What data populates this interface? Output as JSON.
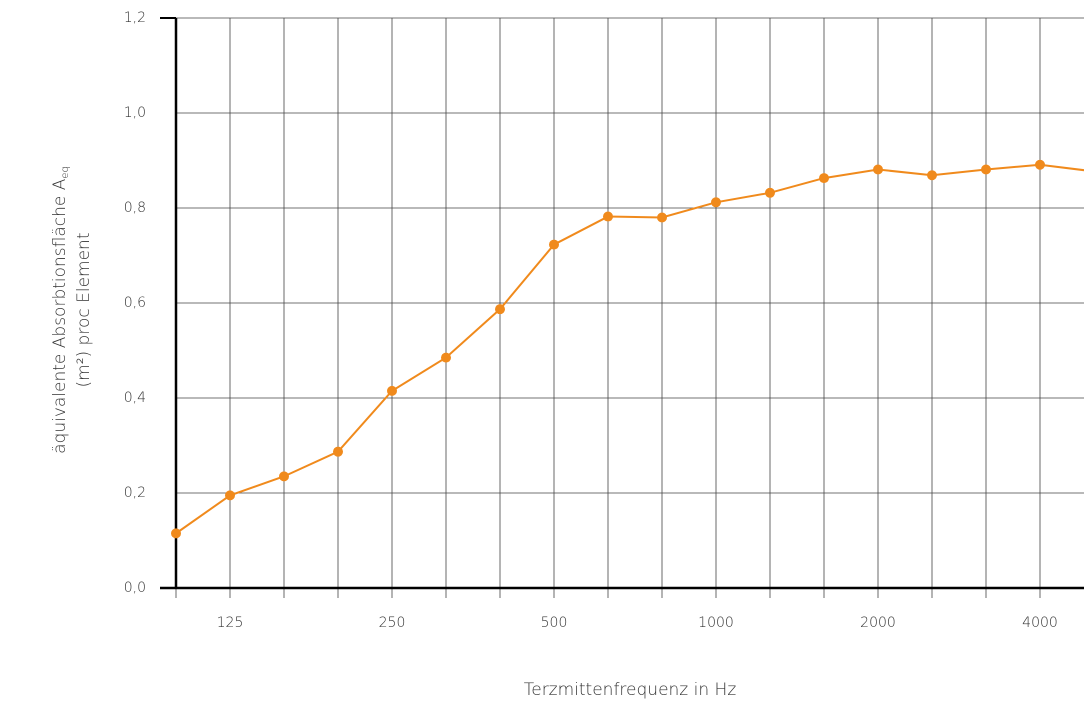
{
  "chart_data": {
    "type": "line",
    "ylabel_line1": "äquivalente Absorbtionsfläche A",
    "ylabel_subscript": "eq",
    "ylabel_line2": "(m²) proc Element",
    "xlabel": "Terzmittenfrequenz in Hz",
    "categories": [
      null,
      "125",
      null,
      null,
      "250",
      null,
      null,
      "500",
      null,
      null,
      "1000",
      null,
      null,
      "2000",
      null,
      null,
      "4000",
      null
    ],
    "series": [
      {
        "name": "Aeq",
        "color": "#f08a1c",
        "values": [
          0.115,
          0.195,
          0.235,
          0.287,
          0.415,
          0.485,
          0.587,
          0.723,
          0.782,
          0.78,
          0.812,
          0.832,
          0.863,
          0.881,
          0.869,
          0.881,
          0.891,
          0.877
        ]
      }
    ],
    "ylim": [
      0,
      1.2
    ],
    "yticks": [
      {
        "value": 0,
        "label": "0,0"
      },
      {
        "value": 0.2,
        "label": "0,2"
      },
      {
        "value": 0.4,
        "label": "0,4"
      },
      {
        "value": 0.6,
        "label": "0,6"
      },
      {
        "value": 0.8,
        "label": "0,8"
      },
      {
        "value": 1.0,
        "label": "1,0"
      },
      {
        "value": 1.2,
        "label": "1,2"
      }
    ],
    "grid": true
  }
}
